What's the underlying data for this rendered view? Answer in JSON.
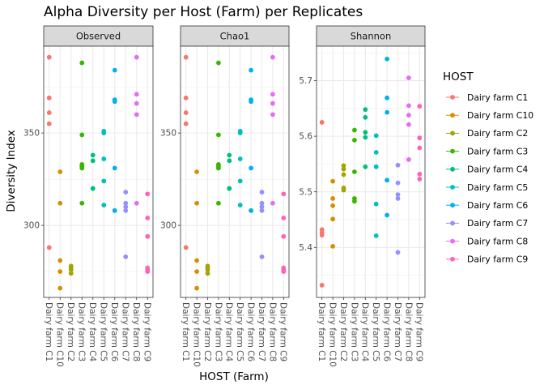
{
  "chart_data": {
    "type": "scatter",
    "title": "Alpha Diversity per Host (Farm) per Replicates",
    "xlabel": "HOST (Farm)",
    "ylabel": "Diversity Index",
    "legend": {
      "title": "HOST",
      "placement": "right"
    },
    "categories": [
      "Dairy farm C1",
      "Dairy farm C10",
      "Dairy farm C2",
      "Dairy farm C3",
      "Dairy farm C4",
      "Dairy farm C5",
      "Dairy farm C6",
      "Dairy farm C7",
      "Dairy farm C8",
      "Dairy farm C9"
    ],
    "colors": [
      "#F8766D",
      "#D89000",
      "#A3A500",
      "#39B600",
      "#00BF7D",
      "#00BFC4",
      "#00B0F6",
      "#9590FF",
      "#E76BF3",
      "#FF62BC"
    ],
    "grid": true,
    "panels": [
      {
        "name": "Observed",
        "ylim": [
          261,
          397
        ],
        "yticks": [
          300,
          350
        ],
        "points": [
          [
            391,
            369,
            361,
            355,
            288
          ],
          [
            329,
            312,
            281,
            275,
            266
          ],
          [
            278,
            277,
            276,
            274
          ],
          [
            388,
            349,
            333,
            332,
            331,
            312
          ],
          [
            338,
            335,
            320,
            320
          ],
          [
            351,
            350,
            336,
            324,
            311
          ],
          [
            384,
            368,
            367,
            331,
            308,
            308
          ],
          [
            318,
            312,
            310,
            308,
            283
          ],
          [
            391,
            371,
            366,
            360,
            312
          ],
          [
            317,
            304,
            294,
            277,
            276,
            275
          ]
        ]
      },
      {
        "name": "Chao1",
        "ylim": [
          261,
          397
        ],
        "yticks": [
          300,
          350
        ],
        "points": [
          [
            391,
            369,
            361,
            355,
            288
          ],
          [
            329,
            312,
            281,
            275,
            266
          ],
          [
            278,
            277,
            276,
            274
          ],
          [
            388,
            349,
            333,
            332,
            331,
            312
          ],
          [
            338,
            335,
            320,
            320
          ],
          [
            351,
            350,
            336,
            324,
            311
          ],
          [
            384,
            368,
            367,
            331,
            308,
            308
          ],
          [
            318,
            312,
            310,
            308,
            283
          ],
          [
            391,
            371,
            366,
            360,
            312
          ],
          [
            317,
            304,
            294,
            277,
            276,
            275
          ]
        ]
      },
      {
        "name": "Shannon",
        "ylim": [
          5.31,
          5.762
        ],
        "yticks": [
          5.4,
          5.5,
          5.6,
          5.7
        ],
        "points": [
          [
            5.625,
            5.432,
            5.427,
            5.422,
            5.332
          ],
          [
            5.519,
            5.488,
            5.475,
            5.451,
            5.402
          ],
          [
            5.547,
            5.541,
            5.531,
            5.507,
            5.503
          ],
          [
            5.611,
            5.593,
            5.536,
            5.488,
            5.483
          ],
          [
            5.648,
            5.634,
            5.607,
            5.598,
            5.545
          ],
          [
            5.601,
            5.571,
            5.545,
            5.478,
            5.421
          ],
          [
            5.739,
            5.669,
            5.643,
            5.521,
            5.458
          ],
          [
            5.548,
            5.516,
            5.495,
            5.488,
            5.391
          ],
          [
            5.705,
            5.655,
            5.638,
            5.621,
            5.558
          ],
          [
            5.654,
            5.597,
            5.579,
            5.532,
            5.523
          ]
        ]
      }
    ]
  }
}
